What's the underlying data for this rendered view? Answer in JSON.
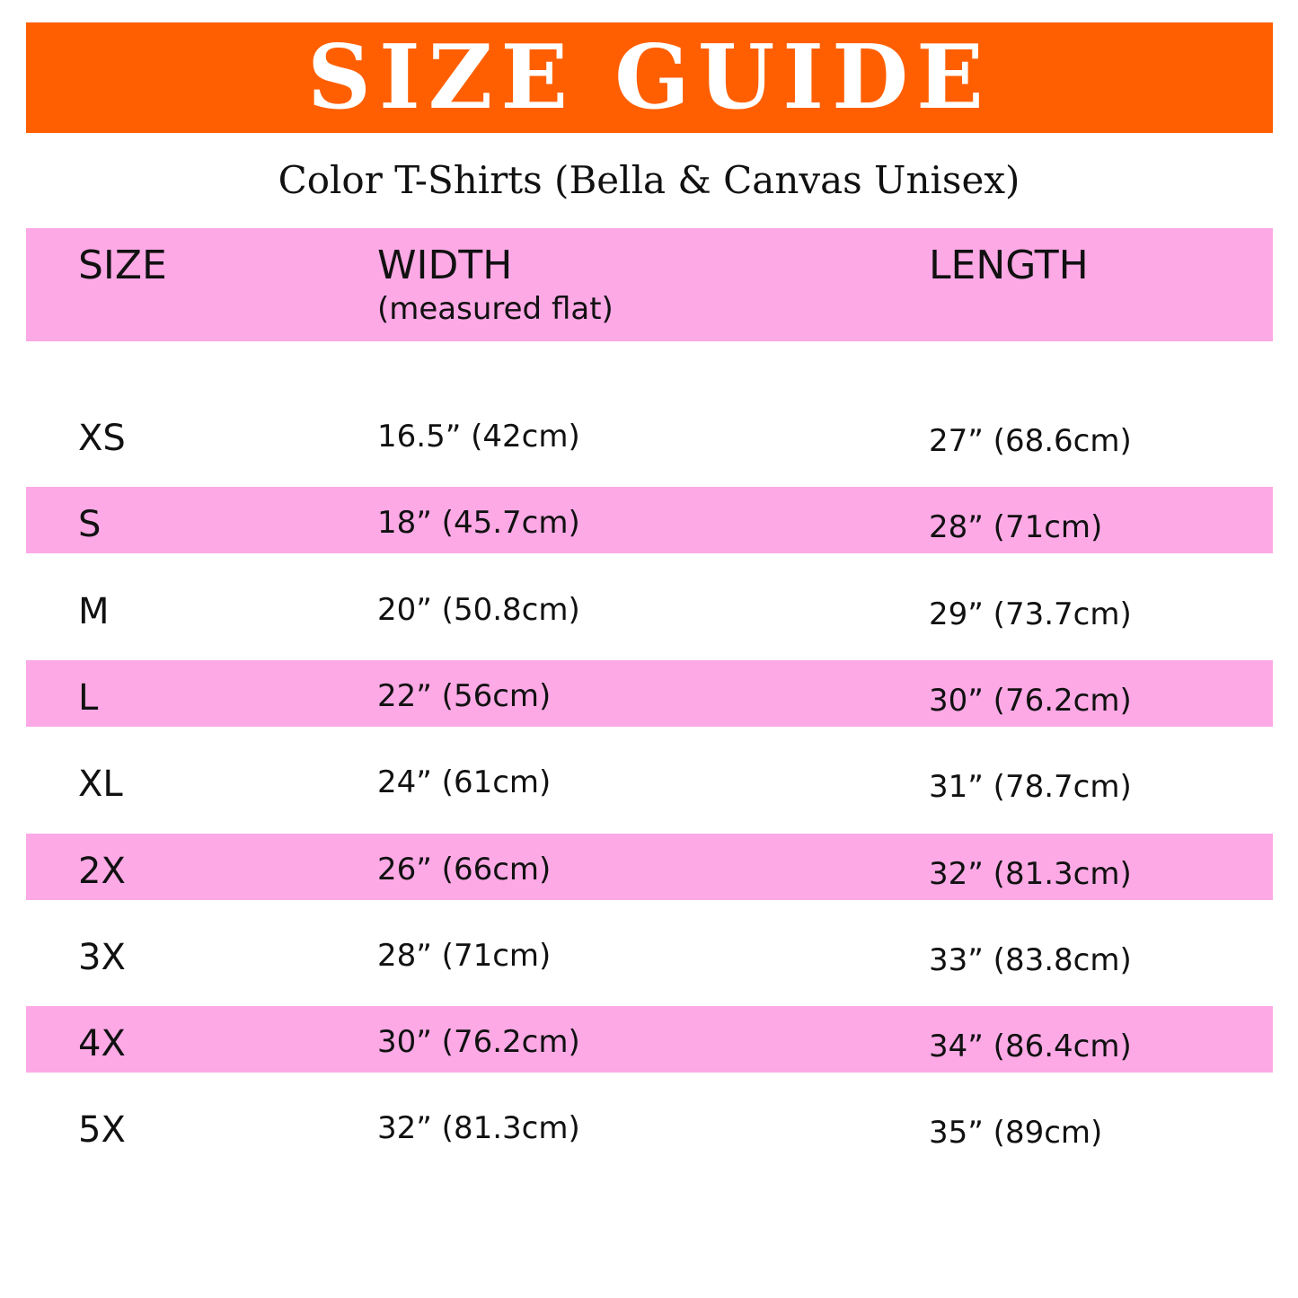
{
  "title": "SIZE GUIDE",
  "subtitle": "Color T-Shirts (Bella & Canvas Unisex)",
  "colors": {
    "banner": "#ff5f00",
    "stripe": "#fda9e6"
  },
  "headers": {
    "size": "SIZE",
    "width": "WIDTH",
    "width_note": "(measured flat)",
    "length": "LENGTH"
  },
  "rows": [
    {
      "size": "XS",
      "width": "16.5” (42cm)",
      "length": "27” (68.6cm)"
    },
    {
      "size": "S",
      "width": "18” (45.7cm)",
      "length": "28” (71cm)"
    },
    {
      "size": "M",
      "width": "20” (50.8cm)",
      "length": "29” (73.7cm)"
    },
    {
      "size": "L",
      "width": "22” (56cm)",
      "length": "30” (76.2cm)"
    },
    {
      "size": "XL",
      "width": "24” (61cm)",
      "length": "31” (78.7cm)"
    },
    {
      "size": "2X",
      "width": "26” (66cm)",
      "length": "32” (81.3cm)"
    },
    {
      "size": "3X",
      "width": "28” (71cm)",
      "length": "33” (83.8cm)"
    },
    {
      "size": "4X",
      "width": "30” (76.2cm)",
      "length": "34” (86.4cm)"
    },
    {
      "size": "5X",
      "width": "32” (81.3cm)",
      "length": "35” (89cm)"
    }
  ]
}
